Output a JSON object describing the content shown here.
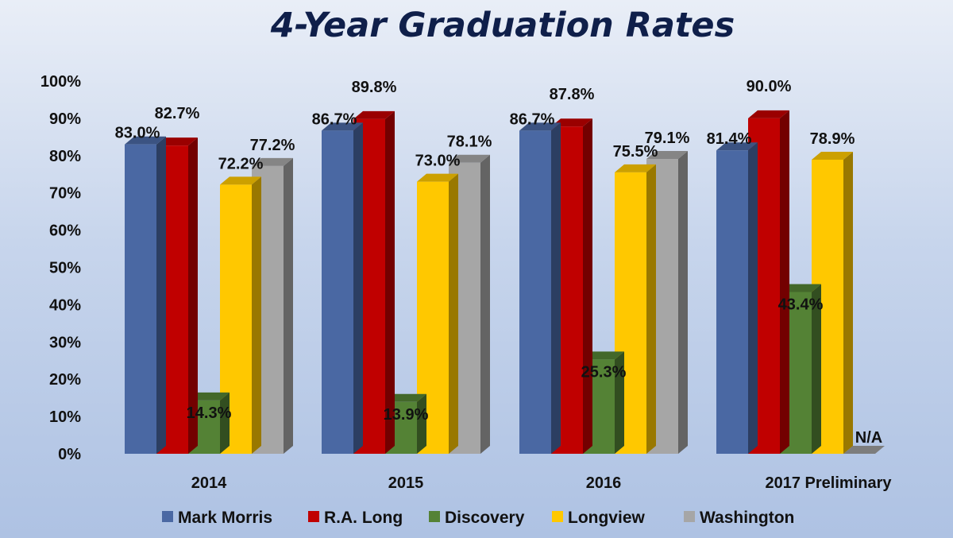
{
  "chart_data": {
    "type": "bar",
    "title": "4-Year Graduation Rates",
    "categories": [
      "2014",
      "2015",
      "2016",
      "2017 Preliminary"
    ],
    "ylim": [
      0,
      100
    ],
    "yticks": [
      "0%",
      "10%",
      "20%",
      "30%",
      "40%",
      "50%",
      "60%",
      "70%",
      "80%",
      "90%",
      "100%"
    ],
    "grid": false,
    "legend_position": "bottom",
    "series": [
      {
        "name": "Mark Morris",
        "color": "#4a68a3",
        "values": [
          83.0,
          86.7,
          86.7,
          81.4
        ],
        "labels": [
          "83.0%",
          "86.7%",
          "86.7%",
          "81.4%"
        ]
      },
      {
        "name": "R.A. Long",
        "color": "#c00000",
        "values": [
          82.7,
          89.8,
          87.8,
          90.0
        ],
        "labels": [
          "82.7%",
          "89.8%",
          "87.8%",
          "90.0%"
        ]
      },
      {
        "name": "Discovery",
        "color": "#548235",
        "values": [
          14.3,
          13.9,
          25.3,
          43.4
        ],
        "labels": [
          "14.3%",
          "13.9%",
          "25.3%",
          "43.4%"
        ]
      },
      {
        "name": "Longview",
        "color": "#ffc800",
        "values": [
          72.2,
          73.0,
          75.5,
          78.9
        ],
        "labels": [
          "72.2%",
          "73.0%",
          "75.5%",
          "78.9%"
        ]
      },
      {
        "name": "Washington",
        "color": "#a6a6a6",
        "values": [
          77.2,
          78.1,
          79.1,
          null
        ],
        "labels": [
          "77.2%",
          "78.1%",
          "79.1%",
          "N/A"
        ]
      }
    ]
  }
}
